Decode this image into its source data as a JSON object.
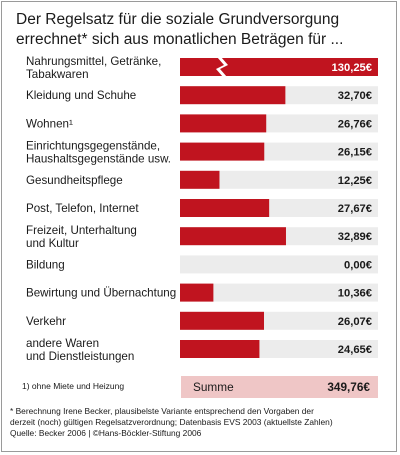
{
  "title": {
    "line1": "Der Regelsatz für die soziale Grundversorgung",
    "line2": "errechnet* sich aus monatlichen Beträgen für ..."
  },
  "chart_data": {
    "type": "bar",
    "orientation": "horizontal",
    "categories": [
      [
        "Nahrungsmittel, Getränke,",
        "Tabakwaren"
      ],
      [
        "Kleidung und Schuhe"
      ],
      [
        "Wohnen¹"
      ],
      [
        "Einrichtungsgegenstände,",
        "Haushaltsgegenstände usw."
      ],
      [
        "Gesundheitspflege"
      ],
      [
        "Post, Telefon, Internet"
      ],
      [
        "Freizeit, Unterhaltung",
        "und Kultur"
      ],
      [
        "Bildung"
      ],
      [
        "Bewirtung und Übernachtung"
      ],
      [
        "Verkehr"
      ],
      [
        "andere Waren",
        "und Dienstleistungen"
      ]
    ],
    "values": [
      130.25,
      32.7,
      26.76,
      26.15,
      12.25,
      27.67,
      32.89,
      0.0,
      10.36,
      26.07,
      24.65
    ],
    "value_labels": [
      "130,25€",
      "32,70€",
      "26,76€",
      "26,15€",
      "12,25€",
      "27,67€",
      "32,89€",
      "0,00€",
      "10,36€",
      "26,07€",
      "24,65€"
    ],
    "axis_broken_bar_index": 0,
    "xlim": [
      0,
      45
    ],
    "bar_color": "#c0141f",
    "track_color": "#ececec",
    "total": {
      "label": "Summe",
      "value": 349.76,
      "value_label": "349,76€"
    }
  },
  "footnote1": "1) ohne Miete und Heizung",
  "notes": {
    "line1": "* Berechnung Irene Becker, plausibelste Variante entsprechend den Vorgaben der",
    "line2": "derzeit (noch) gültigen Regelsatzverordnung; Datenbasis EVS 2003 (aktuellste Zahlen)",
    "line3": "Quelle: Becker 2006 | ©Hans-Böckler-Stiftung 2006"
  }
}
